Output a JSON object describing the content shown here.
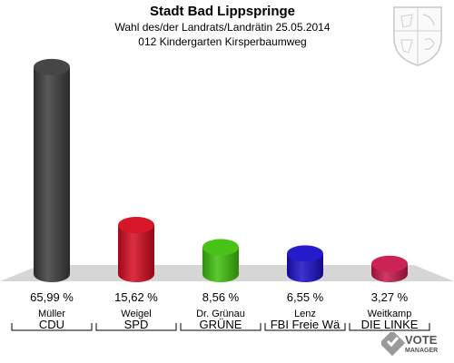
{
  "header": {
    "title": "Stadt Bad Lippspringe",
    "subtitle": "Wahl des/der Landrats/Landrätin 25.05.2014",
    "district": "012 Kindergarten Kirsperbaumweg"
  },
  "chart_data": {
    "type": "bar",
    "title": "Stadt Bad Lippspringe",
    "categories": [
      "CDU",
      "SPD",
      "GRÜNE",
      "FBI Freie Wä",
      "DIE LINKE"
    ],
    "candidates": [
      "Müller",
      "Weigel",
      "Dr. Grünau",
      "Lenz",
      "Weitkamp"
    ],
    "values": [
      65.99,
      15.62,
      8.56,
      6.55,
      3.27
    ],
    "value_labels": [
      "65,99 %",
      "15,62 %",
      "8,56 %",
      "6,55 %",
      "3,27 %"
    ],
    "colors": [
      "#3c3c3c",
      "#d40a1e",
      "#3fbf0c",
      "#1a0fc8",
      "#c8174a"
    ],
    "ylim": [
      0,
      70
    ],
    "grid": false,
    "legend": "none"
  },
  "brand": {
    "logo_text": "VOTE",
    "logo_subtext": "MANAGER"
  }
}
